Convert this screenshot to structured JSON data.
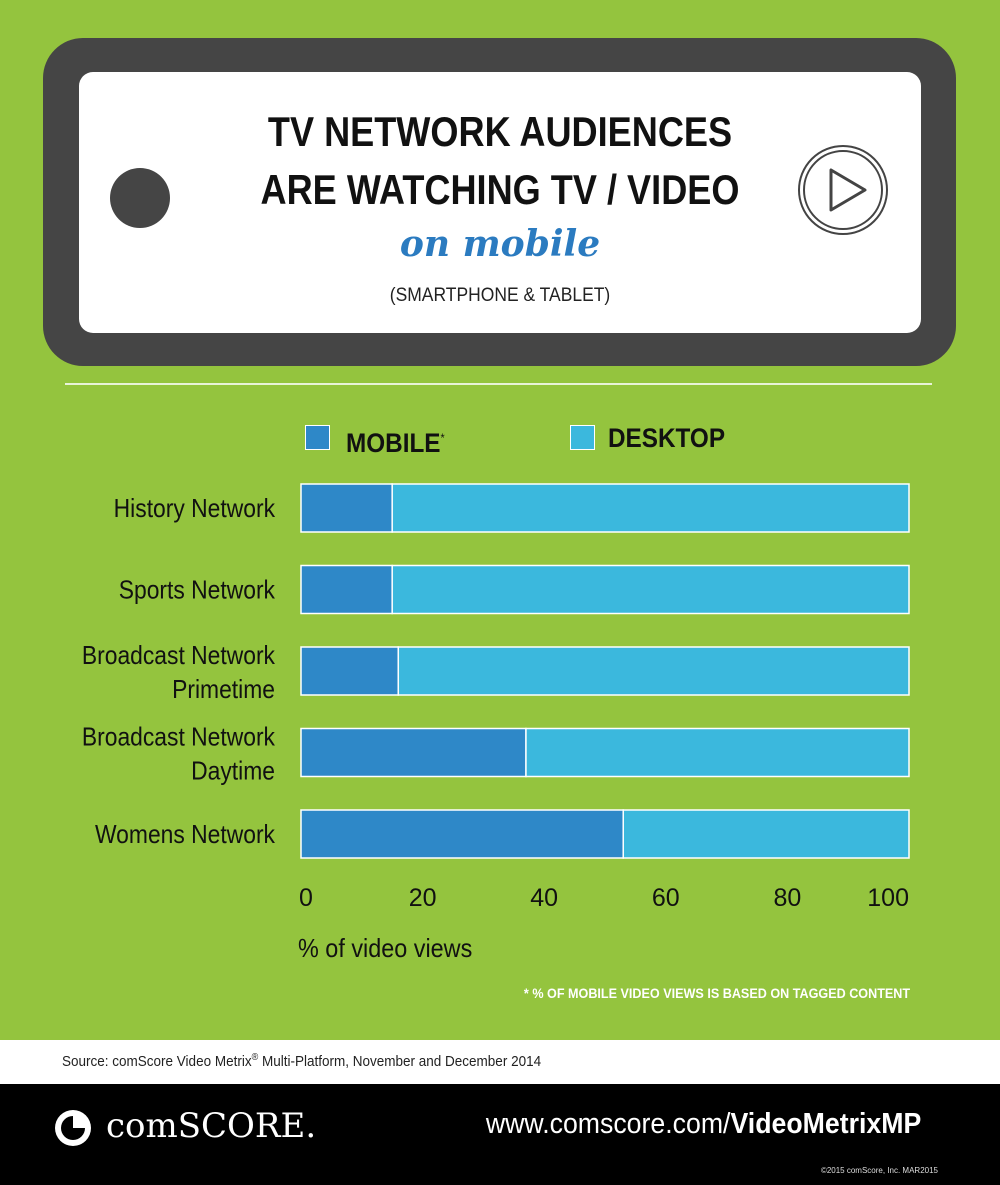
{
  "header": {
    "title_line1": "TV NETWORK AUDIENCES",
    "title_line2": "ARE WATCHING TV / VIDEO",
    "title_line3": "on mobile",
    "subtitle": "(SMARTPHONE & TABLET)"
  },
  "legend": {
    "mobile_label": "MOBILE",
    "mobile_marker": "*",
    "desktop_label": "DESKTOP"
  },
  "colors": {
    "background": "#94c43e",
    "mobile": "#2e88c8",
    "desktop": "#3bb8dd",
    "title_accent": "#2b7bc0"
  },
  "chart_data": {
    "type": "bar",
    "orientation": "horizontal",
    "stacked": true,
    "categories": [
      "History Network",
      "Sports Network",
      "Broadcast Network Primetime",
      "Broadcast Network Daytime",
      "Womens Network"
    ],
    "series": [
      {
        "name": "MOBILE",
        "values": [
          15,
          15,
          16,
          37,
          53
        ]
      },
      {
        "name": "DESKTOP",
        "values": [
          85,
          85,
          84,
          63,
          47
        ]
      }
    ],
    "xticks": [
      "0",
      "20",
      "40",
      "60",
      "80",
      "100"
    ],
    "xlim": [
      0,
      100
    ],
    "xlabel": "% of video views",
    "legend_position": "top",
    "grid": false
  },
  "footnote": "* % OF MOBILE VIDEO VIEWS IS BASED ON TAGGED CONTENT",
  "source": {
    "prefix": "Source: comScore Video Metrix",
    "registered": "®",
    "suffix": " Multi-Platform, November and December 2014"
  },
  "footer": {
    "logo_text": "comSCORE.",
    "url_prefix": "www.comscore.com/",
    "url_bold": "VideoMetrixMP",
    "copyright": "©2015 comScore, Inc. MAR2015"
  }
}
